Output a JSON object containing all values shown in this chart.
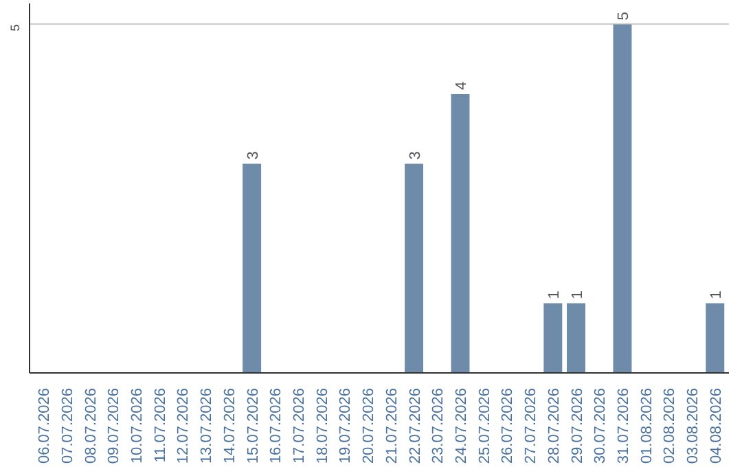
{
  "chart_data": {
    "type": "bar",
    "categories": [
      "06.07.2026",
      "07.07.2026",
      "08.07.2026",
      "09.07.2026",
      "10.07.2026",
      "11.07.2026",
      "12.07.2026",
      "13.07.2026",
      "14.07.2026",
      "15.07.2026",
      "16.07.2026",
      "17.07.2026",
      "18.07.2026",
      "19.07.2026",
      "20.07.2026",
      "21.07.2026",
      "22.07.2026",
      "23.07.2026",
      "24.07.2026",
      "25.07.2026",
      "26.07.2026",
      "27.07.2026",
      "28.07.2026",
      "29.07.2026",
      "30.07.2026",
      "31.07.2026",
      "01.08.2026",
      "02.08.2026",
      "03.08.2026",
      "04.08.2026"
    ],
    "values": [
      0,
      0,
      0,
      0,
      0,
      0,
      0,
      0,
      0,
      3,
      0,
      0,
      0,
      0,
      0,
      0,
      3,
      0,
      4,
      0,
      0,
      0,
      1,
      1,
      0,
      5,
      0,
      0,
      0,
      1
    ],
    "value_labels": [
      null,
      null,
      null,
      null,
      null,
      null,
      null,
      null,
      null,
      "3",
      null,
      null,
      null,
      null,
      null,
      null,
      "3",
      null,
      "4",
      null,
      null,
      null,
      "1",
      "1",
      null,
      "5",
      null,
      null,
      null,
      "1"
    ],
    "color": "#6e8caa",
    "ylim": [
      0,
      5.3
    ],
    "yticks": [
      5
    ],
    "grid": "y"
  }
}
